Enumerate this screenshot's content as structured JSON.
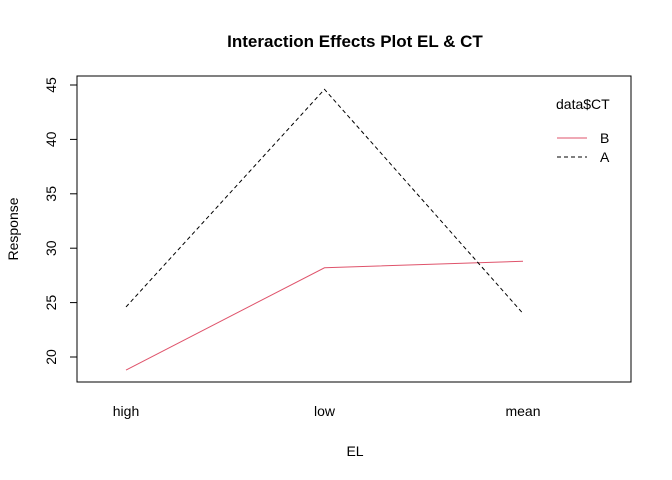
{
  "chart_data": {
    "type": "line",
    "title": "Interaction Effects Plot EL & CT",
    "xlabel": "EL",
    "ylabel": "Response",
    "categories": [
      "high",
      "low",
      "mean"
    ],
    "ylim": [
      18,
      45
    ],
    "yticks": [
      20,
      25,
      30,
      35,
      40,
      45
    ],
    "grid": false,
    "legend": {
      "title": "data$CT",
      "placement": "top-right",
      "entries": [
        {
          "name": "B",
          "color": "#DF536B",
          "linestyle": "solid"
        },
        {
          "name": "A",
          "color": "#000000",
          "linestyle": "dashed"
        }
      ]
    },
    "series": [
      {
        "name": "B",
        "values": [
          18.8,
          28.2,
          28.8
        ],
        "color": "#DF536B",
        "linestyle": "solid"
      },
      {
        "name": "A",
        "values": [
          24.6,
          44.6,
          24.0
        ],
        "color": "#000000",
        "linestyle": "dashed"
      }
    ]
  }
}
